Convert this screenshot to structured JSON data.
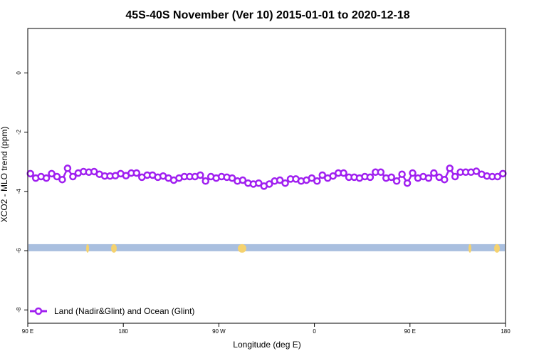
{
  "chart_data": {
    "type": "line",
    "title": "45S-40S November (Ver 10)   2015-01-01 to 2020-12-18",
    "xlabel": "Longitude (deg E)",
    "ylabel": "XCO2 - MLO trend (ppm)",
    "x_ticks": [
      {
        "value": 90,
        "label": "90 E"
      },
      {
        "value": 180,
        "label": "180"
      },
      {
        "value": 270,
        "label": "90 W"
      },
      {
        "value": 360,
        "label": "0"
      },
      {
        "value": 450,
        "label": "90 E"
      },
      {
        "value": 540,
        "label": "180"
      }
    ],
    "y_ticks": [
      {
        "value": 0,
        "label": "0"
      },
      {
        "value": -2,
        "label": "-2"
      },
      {
        "value": -4,
        "label": "-4"
      },
      {
        "value": -6,
        "label": "-6"
      },
      {
        "value": -8,
        "label": "-8"
      }
    ],
    "xlim": [
      90,
      540
    ],
    "ylim": [
      -8.45,
      1.5
    ],
    "grid": false,
    "legend_position": "bottom-left",
    "series": [
      {
        "name": "Land (Nadir&Glint) and Ocean (Glint)",
        "color": "#a020f0",
        "marker": "open-circle",
        "x": [
          92.5,
          97.5,
          102.5,
          107.5,
          112.5,
          117.5,
          122.5,
          127.5,
          132.5,
          137.5,
          142.5,
          147.5,
          152.5,
          157.5,
          162.5,
          167.5,
          172.5,
          177.5,
          182.5,
          187.5,
          192.5,
          197.5,
          202.5,
          207.5,
          212.5,
          217.5,
          222.5,
          227.5,
          232.5,
          237.5,
          242.5,
          247.5,
          252.5,
          257.5,
          262.5,
          267.5,
          272.5,
          277.5,
          282.5,
          287.5,
          292.5,
          297.5,
          302.5,
          307.5,
          312.5,
          317.5,
          322.5,
          327.5,
          332.5,
          337.5,
          342.5,
          347.5,
          352.5,
          357.5,
          362.5,
          367.5,
          372.5,
          377.5,
          382.5,
          387.5,
          392.5,
          397.5,
          402.5,
          407.5,
          412.5,
          417.5,
          422.5,
          427.5,
          432.5,
          437.5,
          442.5,
          447.5,
          452.5,
          457.5,
          462.5,
          467.5,
          472.5,
          477.5,
          482.5,
          487.5,
          492.5,
          497.5,
          502.5,
          507.5,
          512.5,
          517.5,
          522.5,
          527.5,
          532.5,
          537.5
        ],
        "values": [
          -3.4,
          -3.55,
          -3.5,
          -3.55,
          -3.4,
          -3.5,
          -3.6,
          -3.22,
          -3.5,
          -3.38,
          -3.33,
          -3.35,
          -3.33,
          -3.42,
          -3.48,
          -3.48,
          -3.47,
          -3.4,
          -3.47,
          -3.38,
          -3.38,
          -3.52,
          -3.45,
          -3.45,
          -3.52,
          -3.48,
          -3.55,
          -3.62,
          -3.55,
          -3.5,
          -3.5,
          -3.5,
          -3.45,
          -3.65,
          -3.5,
          -3.55,
          -3.5,
          -3.52,
          -3.55,
          -3.65,
          -3.62,
          -3.72,
          -3.75,
          -3.72,
          -3.82,
          -3.75,
          -3.65,
          -3.62,
          -3.72,
          -3.58,
          -3.58,
          -3.65,
          -3.62,
          -3.55,
          -3.65,
          -3.45,
          -3.55,
          -3.48,
          -3.38,
          -3.38,
          -3.52,
          -3.52,
          -3.55,
          -3.5,
          -3.52,
          -3.35,
          -3.35,
          -3.55,
          -3.52,
          -3.65,
          -3.42,
          -3.72,
          -3.38,
          -3.55,
          -3.5,
          -3.55,
          -3.38,
          -3.52,
          -3.6,
          -3.22,
          -3.5,
          -3.35,
          -3.35,
          -3.35,
          -3.32,
          -3.42,
          -3.48,
          -3.5,
          -3.5,
          -3.4
        ]
      }
    ],
    "surface_strip": {
      "y": -5.9,
      "ocean_color": "#a9bfdf",
      "land_color": "#f5d26e"
    }
  }
}
